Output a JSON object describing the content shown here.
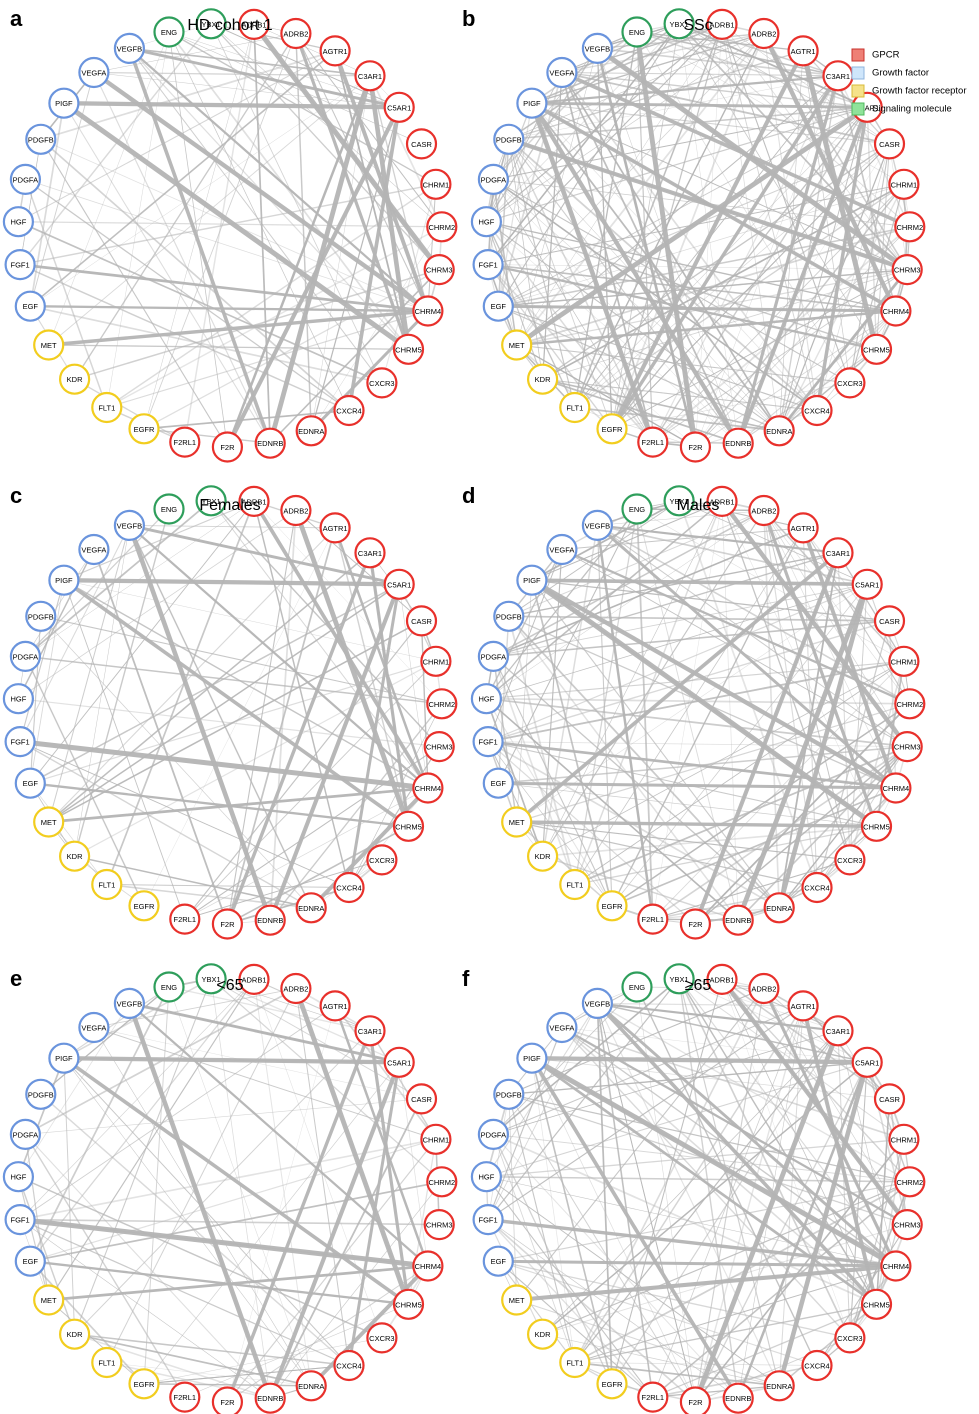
{
  "colors": {
    "GPCR": "#e8302b",
    "Growth factor": "#6a94dd",
    "Growth factor receptor": "#f2cd1e",
    "Signaling molecule": "#2e9e5b",
    "edge": "#b4b4b4"
  },
  "legend": [
    {
      "label": "GPCR",
      "fill": "#ee8076",
      "stroke": "#c8302b"
    },
    {
      "label": "Growth factor",
      "fill": "#cfe6fb",
      "stroke": "#8fb4dc"
    },
    {
      "label": "Growth factor receptor",
      "fill": "#f5e28a",
      "stroke": "#d8bb3a"
    },
    {
      "label": "Signaling molecule",
      "fill": "#8fe39a",
      "stroke": "#4fb85f"
    }
  ],
  "nodes": [
    {
      "label": "ADRB1",
      "type": "GPCR"
    },
    {
      "label": "ADRB2",
      "type": "GPCR"
    },
    {
      "label": "AGTR1",
      "type": "GPCR"
    },
    {
      "label": "C3AR1",
      "type": "GPCR"
    },
    {
      "label": "C5AR1",
      "type": "GPCR"
    },
    {
      "label": "CASR",
      "type": "GPCR"
    },
    {
      "label": "CHRM1",
      "type": "GPCR"
    },
    {
      "label": "CHRM2",
      "type": "GPCR"
    },
    {
      "label": "CHRM3",
      "type": "GPCR"
    },
    {
      "label": "CHRM4",
      "type": "GPCR"
    },
    {
      "label": "CHRM5",
      "type": "GPCR"
    },
    {
      "label": "CXCR3",
      "type": "GPCR"
    },
    {
      "label": "CXCR4",
      "type": "GPCR"
    },
    {
      "label": "EDNRA",
      "type": "GPCR"
    },
    {
      "label": "EDNRB",
      "type": "GPCR"
    },
    {
      "label": "F2R",
      "type": "GPCR"
    },
    {
      "label": "F2RL1",
      "type": "GPCR"
    },
    {
      "label": "EGFR",
      "type": "Growth factor receptor"
    },
    {
      "label": "FLT1",
      "type": "Growth factor receptor"
    },
    {
      "label": "KDR",
      "type": "Growth factor receptor"
    },
    {
      "label": "MET",
      "type": "Growth factor receptor"
    },
    {
      "label": "EGF",
      "type": "Growth factor"
    },
    {
      "label": "FGF1",
      "type": "Growth factor"
    },
    {
      "label": "HGF",
      "type": "Growth factor"
    },
    {
      "label": "PDGFA",
      "type": "Growth factor"
    },
    {
      "label": "PDGFB",
      "type": "Growth factor"
    },
    {
      "label": "PIGF",
      "type": "Growth factor"
    },
    {
      "label": "VEGFA",
      "type": "Growth factor"
    },
    {
      "label": "VEGFB",
      "type": "Growth factor"
    },
    {
      "label": "ENG",
      "type": "Signaling molecule"
    },
    {
      "label": "YBX1",
      "type": "Signaling molecule"
    }
  ],
  "panels": [
    {
      "letter": "a",
      "title": "HD cohort 1",
      "density": "low",
      "thick": [
        [
          "VEGFB",
          "CHRM4"
        ],
        [
          "VEGFB",
          "C5AR1"
        ],
        [
          "VEGFB",
          "EDNRB"
        ],
        [
          "PIGF",
          "C5AR1"
        ],
        [
          "PIGF",
          "CHRM5"
        ],
        [
          "FGF1",
          "CHRM4"
        ],
        [
          "MET",
          "CHRM4"
        ],
        [
          "F2R",
          "C5AR1"
        ],
        [
          "EDNRB",
          "C3AR1"
        ],
        [
          "F2R",
          "C3AR1"
        ],
        [
          "ADRB2",
          "CHRM5"
        ],
        [
          "AGTR1",
          "CHRM4"
        ],
        [
          "C3AR1",
          "CHRM5"
        ],
        [
          "EGF",
          "CHRM4"
        ],
        [
          "EDNRA",
          "CHRM4"
        ],
        [
          "CXCR4",
          "C5AR1"
        ],
        [
          "VEGFA",
          "CHRM4"
        ],
        [
          "ADRB1",
          "CHRM3"
        ]
      ]
    },
    {
      "letter": "b",
      "title": "SSc",
      "density": "high",
      "thick": [
        [
          "PIGF",
          "C3AR1"
        ],
        [
          "PIGF",
          "C5AR1"
        ],
        [
          "PIGF",
          "CHRM4"
        ],
        [
          "PIGF",
          "EDNRB"
        ],
        [
          "VEGFB",
          "CHRM3"
        ],
        [
          "VEGFB",
          "F2R"
        ],
        [
          "EGFR",
          "C3AR1"
        ],
        [
          "EGFR",
          "AGTR1"
        ],
        [
          "MET",
          "C5AR1"
        ],
        [
          "MET",
          "CHRM4"
        ],
        [
          "EDNRB",
          "C3AR1"
        ],
        [
          "EDNRB",
          "C5AR1"
        ],
        [
          "F2RL1",
          "PIGF"
        ],
        [
          "FGF1",
          "CHRM5"
        ],
        [
          "EGF",
          "CHRM4"
        ],
        [
          "VEGFA",
          "CHRM2"
        ],
        [
          "ADRB2",
          "CHRM4"
        ],
        [
          "AGTR1",
          "CHRM5"
        ],
        [
          "EDNRA",
          "CHRM3"
        ],
        [
          "CXCR4",
          "C5AR1"
        ],
        [
          "PDGFB",
          "CHRM3"
        ],
        [
          "ENG",
          "F2R"
        ]
      ]
    },
    {
      "letter": "c",
      "title": "Females",
      "density": "low",
      "thick": [
        [
          "VEGFB",
          "CHRM4"
        ],
        [
          "VEGFB",
          "C5AR1"
        ],
        [
          "PIGF",
          "CHRM5"
        ],
        [
          "PIGF",
          "C5AR1"
        ],
        [
          "FGF1",
          "CHRM4"
        ],
        [
          "MET",
          "CHRM4"
        ],
        [
          "F2R",
          "C3AR1"
        ],
        [
          "EDNRB",
          "C5AR1"
        ],
        [
          "ADRB2",
          "CHRM5"
        ],
        [
          "AGTR1",
          "CHRM4"
        ],
        [
          "C3AR1",
          "CHRM5"
        ],
        [
          "EDNRA",
          "CHRM4"
        ],
        [
          "VEGFB",
          "EDNRB"
        ],
        [
          "EGF",
          "CHRM5"
        ],
        [
          "CXCR4",
          "C5AR1"
        ],
        [
          "ADRB1",
          "CHRM4"
        ]
      ]
    },
    {
      "letter": "d",
      "title": "Males",
      "density": "mid",
      "thick": [
        [
          "VEGFB",
          "C3AR1"
        ],
        [
          "VEGFB",
          "CHRM4"
        ],
        [
          "PIGF",
          "C5AR1"
        ],
        [
          "PIGF",
          "CHRM4"
        ],
        [
          "PIGF",
          "CHRM5"
        ],
        [
          "FGF1",
          "CHRM4"
        ],
        [
          "MET",
          "CHRM5"
        ],
        [
          "F2R",
          "C3AR1"
        ],
        [
          "EDNRB",
          "C5AR1"
        ],
        [
          "F2RL1",
          "VEGFB"
        ],
        [
          "ADRB2",
          "CHRM5"
        ],
        [
          "AGTR1",
          "CHRM4"
        ],
        [
          "EDNRA",
          "C5AR1"
        ],
        [
          "VEGFA",
          "CHRM2"
        ],
        [
          "EGF",
          "CHRM4"
        ],
        [
          "MET",
          "C3AR1"
        ],
        [
          "ADRB1",
          "CHRM3"
        ]
      ]
    },
    {
      "letter": "e",
      "title": "<65",
      "density": "low",
      "thick": [
        [
          "VEGFB",
          "CHRM4"
        ],
        [
          "VEGFB",
          "C5AR1"
        ],
        [
          "PIGF",
          "CHRM5"
        ],
        [
          "PIGF",
          "C5AR1"
        ],
        [
          "FGF1",
          "CHRM4"
        ],
        [
          "MET",
          "CHRM4"
        ],
        [
          "F2R",
          "C3AR1"
        ],
        [
          "EDNRB",
          "C5AR1"
        ],
        [
          "ADRB2",
          "CHRM5"
        ],
        [
          "AGTR1",
          "CHRM4"
        ],
        [
          "C3AR1",
          "CHRM5"
        ],
        [
          "EDNRA",
          "CHRM4"
        ],
        [
          "VEGFB",
          "EDNRB"
        ],
        [
          "EGF",
          "CHRM5"
        ],
        [
          "CXCR4",
          "C5AR1"
        ]
      ]
    },
    {
      "letter": "f",
      "title": "≥65",
      "density": "mid",
      "thick": [
        [
          "VEGFB",
          "C3AR1"
        ],
        [
          "VEGFB",
          "CHRM4"
        ],
        [
          "VEGFB",
          "CHRM5"
        ],
        [
          "PIGF",
          "C5AR1"
        ],
        [
          "PIGF",
          "CHRM4"
        ],
        [
          "PIGF",
          "CHRM5"
        ],
        [
          "FGF1",
          "CHRM4"
        ],
        [
          "MET",
          "CHRM4"
        ],
        [
          "F2R",
          "C3AR1"
        ],
        [
          "EDNRB",
          "C5AR1"
        ],
        [
          "ADRB2",
          "CHRM4"
        ],
        [
          "AGTR1",
          "CHRM5"
        ],
        [
          "EDNRA",
          "C5AR1"
        ],
        [
          "VEGFA",
          "CHRM3"
        ],
        [
          "EGF",
          "CHRM4"
        ],
        [
          "PIGF",
          "EDNRB"
        ],
        [
          "ADRB1",
          "CHRM3"
        ]
      ]
    }
  ]
}
